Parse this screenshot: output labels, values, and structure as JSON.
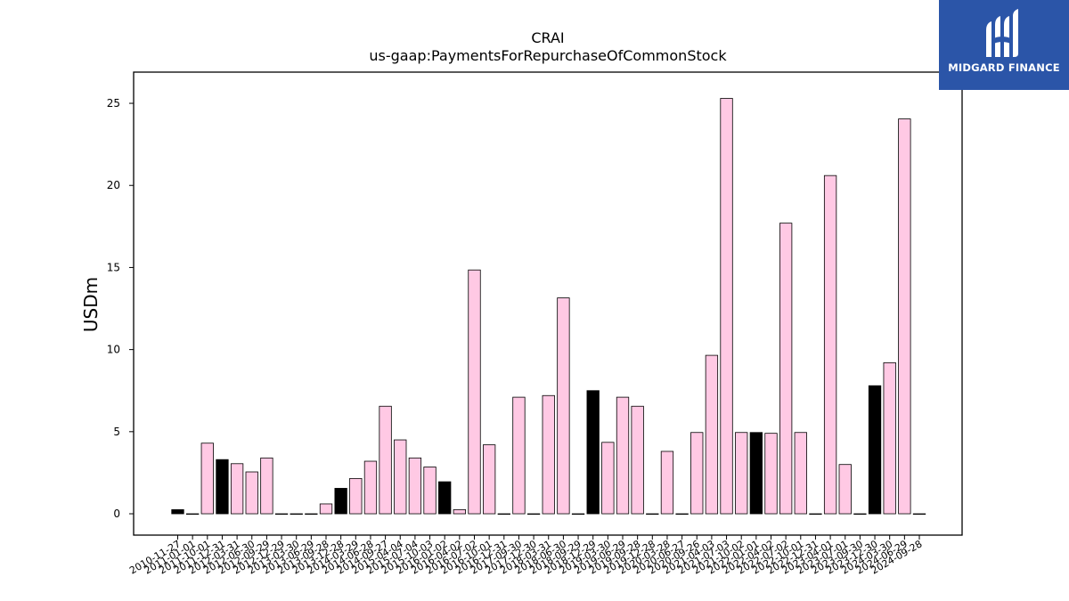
{
  "chart_data": {
    "type": "bar",
    "title": "CRAI",
    "subtitle": "us-gaap:PaymentsForRepurchaseOfCommonStock",
    "xlabel": "",
    "ylabel": "USDm",
    "ylim": [
      -1.3,
      26.9
    ],
    "yticks": [
      0,
      5,
      10,
      15,
      20,
      25
    ],
    "grid": false,
    "categories": [
      "2010-11-27",
      "2011-01-01",
      "2011-10-01",
      "2011-12-31",
      "2012-03-31",
      "2012-06-30",
      "2012-09-29",
      "2012-12-29",
      "2013-03-30",
      "2013-06-29",
      "2013-09-28",
      "2013-12-28",
      "2014-03-29",
      "2014-06-28",
      "2014-09-27",
      "2015-04-04",
      "2015-07-04",
      "2015-10-03",
      "2016-01-02",
      "2016-04-02",
      "2016-07-02",
      "2016-10-01",
      "2016-12-31",
      "2017-09-30",
      "2017-12-30",
      "2018-03-31",
      "2018-06-30",
      "2018-09-29",
      "2018-12-29",
      "2019-03-30",
      "2019-06-29",
      "2019-09-28",
      "2019-12-28",
      "2020-03-28",
      "2020-06-27",
      "2020-09-26",
      "2021-04-03",
      "2021-07-03",
      "2021-10-02",
      "2022-01-01",
      "2022-04-02",
      "2022-07-02",
      "2022-10-01",
      "2022-12-31",
      "2023-04-01",
      "2023-07-01",
      "2023-09-30",
      "2023-12-30",
      "2024-03-30",
      "2024-06-29",
      "2024-09-28"
    ],
    "values": [
      0.25,
      0,
      4.3,
      3.3,
      3.05,
      2.55,
      3.4,
      0,
      0,
      0,
      0.6,
      1.55,
      2.15,
      3.2,
      6.55,
      4.5,
      3.4,
      2.85,
      1.95,
      0.25,
      14.85,
      4.2,
      0,
      7.1,
      0,
      7.2,
      13.15,
      0,
      7.5,
      4.35,
      7.1,
      6.55,
      0,
      3.8,
      0,
      4.95,
      9.65,
      25.3,
      4.95,
      4.95,
      4.9,
      17.7,
      4.95,
      0,
      20.6,
      3.0,
      0,
      7.8,
      9.2,
      24.05,
      0
    ],
    "highlighted": [
      true,
      false,
      false,
      true,
      false,
      false,
      false,
      false,
      false,
      false,
      false,
      true,
      false,
      false,
      false,
      false,
      false,
      false,
      true,
      false,
      false,
      false,
      false,
      false,
      false,
      false,
      false,
      false,
      true,
      false,
      false,
      false,
      false,
      false,
      false,
      false,
      false,
      false,
      false,
      true,
      false,
      false,
      false,
      false,
      false,
      false,
      false,
      true,
      false,
      false,
      false
    ],
    "colors": {
      "bar_fill": "#ffc9e4",
      "bar_highlight": "#000000",
      "bar_edge": "#000000"
    }
  },
  "logo": {
    "text": "MIDGARD FINANCE",
    "background": "#2b55a8"
  }
}
